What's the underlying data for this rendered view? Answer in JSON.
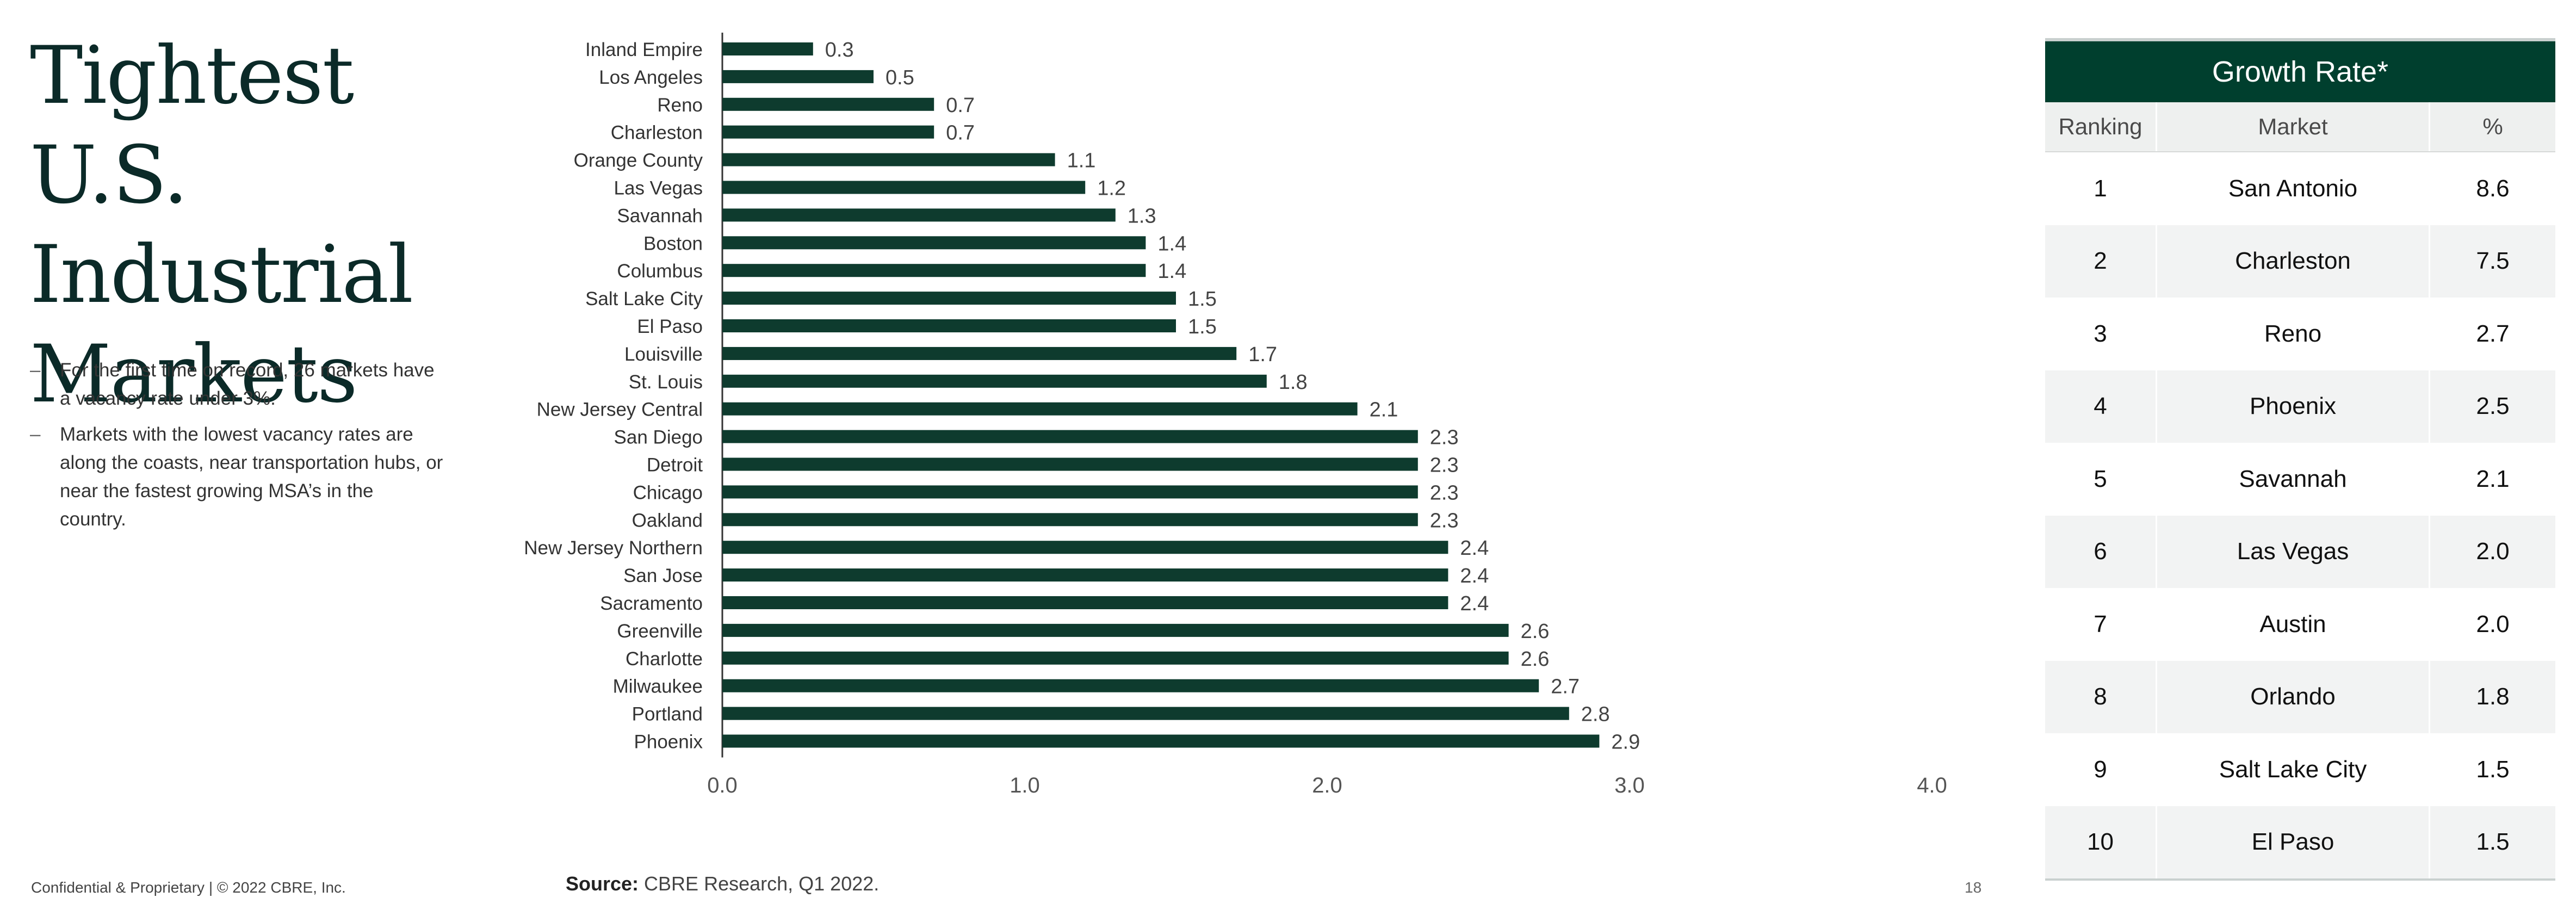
{
  "title": "Tightest U.S. Industrial Markets",
  "bullets": [
    "For the first time on record, 26 markets have a vacancy rate under 3%.",
    "Markets with the lowest vacancy rates are along the coasts, near transportation hubs, or near the fastest growing MSA’s in the country."
  ],
  "bullet_dash": "–",
  "chart_data": {
    "type": "bar",
    "orientation": "horizontal",
    "categories": [
      "Inland Empire",
      "Los Angeles",
      "Reno",
      "Charleston",
      "Orange County",
      "Las Vegas",
      "Savannah",
      "Boston",
      "Columbus",
      "Salt Lake City",
      "El Paso",
      "Louisville",
      "St. Louis",
      "New Jersey Central",
      "San Diego",
      "Detroit",
      "Chicago",
      "Oakland",
      "New Jersey Northern",
      "San Jose",
      "Sacramento",
      "Greenville",
      "Charlotte",
      "Milwaukee",
      "Portland",
      "Phoenix"
    ],
    "values": [
      0.3,
      0.5,
      0.7,
      0.7,
      1.1,
      1.2,
      1.3,
      1.4,
      1.4,
      1.5,
      1.5,
      1.7,
      1.8,
      2.1,
      2.3,
      2.3,
      2.3,
      2.3,
      2.4,
      2.4,
      2.4,
      2.6,
      2.6,
      2.7,
      2.8,
      2.9
    ],
    "xlim": [
      0,
      4.0
    ],
    "xticks": [
      "0.0",
      "1.0",
      "2.0",
      "3.0",
      "4.0"
    ],
    "bar_color": "#0e3b2e",
    "grid": false
  },
  "table": {
    "header": "Growth Rate*",
    "columns": [
      "Ranking",
      "Market",
      "%"
    ],
    "rows": [
      {
        "rank": "1",
        "market": "San Antonio",
        "pct": "8.6"
      },
      {
        "rank": "2",
        "market": "Charleston",
        "pct": "7.5"
      },
      {
        "rank": "3",
        "market": "Reno",
        "pct": "2.7"
      },
      {
        "rank": "4",
        "market": "Phoenix",
        "pct": "2.5"
      },
      {
        "rank": "5",
        "market": "Savannah",
        "pct": "2.1"
      },
      {
        "rank": "6",
        "market": "Las Vegas",
        "pct": "2.0"
      },
      {
        "rank": "7",
        "market": "Austin",
        "pct": "2.0"
      },
      {
        "rank": "8",
        "market": "Orlando",
        "pct": "1.8"
      },
      {
        "rank": "9",
        "market": "Salt Lake City",
        "pct": "1.5"
      },
      {
        "rank": "10",
        "market": "El Paso",
        "pct": "1.5"
      }
    ],
    "header_color": "#003f2e"
  },
  "footer": {
    "confidential": "Confidential & Proprietary | © 2022 CBRE, Inc.",
    "source_label": "Source:",
    "source_text": " CBRE Research, Q1 2022.",
    "page_number": "18"
  }
}
